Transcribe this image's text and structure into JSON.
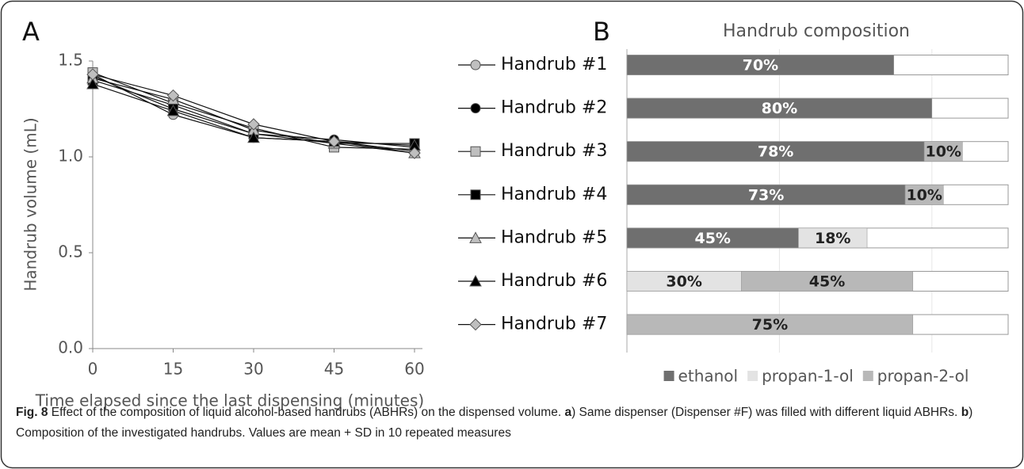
{
  "chart_data": [
    {
      "type": "line",
      "panel": "A",
      "ylabel": "Handrub volume (mL)",
      "xlabel": "Time elapsed since the last dispensing (minutes)",
      "x": [
        0,
        15,
        30,
        45,
        60
      ],
      "xlim": [
        0,
        60
      ],
      "xticks": [
        0,
        15,
        30,
        45,
        60
      ],
      "ylim": [
        0,
        1.5
      ],
      "yticks": [
        {
          "value": 0,
          "label": "0.0"
        },
        0.5,
        {
          "value": 1,
          "label": "1.0"
        },
        1.5
      ],
      "series": [
        {
          "name": "Handrub #1",
          "marker": "circle",
          "color": "#bfbfbf",
          "values": [
            1.43,
            1.22,
            1.1,
            1.08,
            1.03
          ]
        },
        {
          "name": "Handrub #2",
          "marker": "circle",
          "color": "#000000",
          "values": [
            1.42,
            1.25,
            1.12,
            1.09,
            1.05
          ]
        },
        {
          "name": "Handrub #3",
          "marker": "square",
          "color": "#bfbfbf",
          "values": [
            1.44,
            1.28,
            1.15,
            1.05,
            1.04
          ]
        },
        {
          "name": "Handrub #4",
          "marker": "square",
          "color": "#000000",
          "values": [
            1.4,
            1.27,
            1.12,
            1.07,
            1.07
          ]
        },
        {
          "name": "Handrub #5",
          "marker": "triangle",
          "color": "#bfbfbf",
          "values": [
            1.41,
            1.3,
            1.14,
            1.07,
            1.02
          ]
        },
        {
          "name": "Handrub #6",
          "marker": "triangle",
          "color": "#000000",
          "values": [
            1.38,
            1.24,
            1.1,
            1.08,
            1.06
          ]
        },
        {
          "name": "Handrub #7",
          "marker": "diamond",
          "color": "#bfbfbf",
          "values": [
            1.43,
            1.32,
            1.17,
            1.08,
            1.02
          ]
        }
      ]
    },
    {
      "type": "stacked-barh",
      "panel": "B",
      "title": "Handrub composition",
      "xlim": [
        0,
        100
      ],
      "series": [
        {
          "name": "ethanol",
          "color": "#6f6f6f",
          "label_color": "#ffffff",
          "values": [
            70,
            80,
            78,
            73,
            45,
            null,
            null
          ],
          "value_labels": [
            "70%",
            "80%",
            "78%",
            "73%",
            "45%",
            null,
            null
          ]
        },
        {
          "name": "propan-1-ol",
          "color": "#e3e3e3",
          "label_color": "#222222",
          "values": [
            null,
            null,
            null,
            null,
            18,
            30,
            null
          ],
          "value_labels": [
            null,
            null,
            null,
            null,
            "18%",
            "30%",
            null
          ]
        },
        {
          "name": "propan-2-ol",
          "color": "#b8b8b8",
          "label_color": "#222222",
          "values": [
            null,
            null,
            10,
            10,
            null,
            45,
            75
          ],
          "value_labels": [
            null,
            null,
            "10%",
            "10%",
            null,
            "45%",
            "75%"
          ]
        }
      ]
    }
  ],
  "caption": [
    {
      "text": "Fig. 8",
      "bold": true
    },
    {
      "text": " Effect of the composition of liquid alcohol-based handrubs (ABHRs) on the dispensed volume. ",
      "bold": false
    },
    {
      "text": "a",
      "bold": true
    },
    {
      "text": ") Same dispenser (Dispenser #F) was filled with different liquid ABHRs. ",
      "bold": false
    },
    {
      "text": "b",
      "bold": true
    },
    {
      "text": ") Composition of the investigated handrubs. Values are mean + SD in 10 repeated measures",
      "bold": false
    }
  ]
}
